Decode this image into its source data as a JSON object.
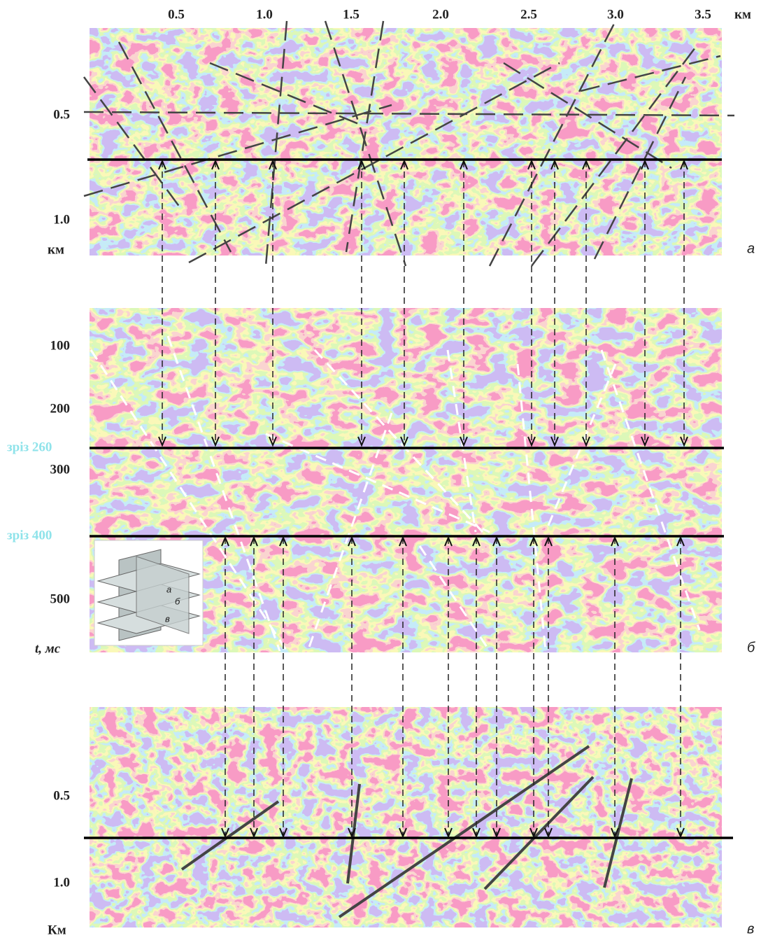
{
  "panel_a": {
    "x_labels": [
      "0.5",
      "1.0",
      "1.5",
      "2.0",
      "2.5",
      "3.0",
      "3.5"
    ],
    "x_unit": "км",
    "y_labels": [
      "0.5",
      "1.0"
    ],
    "y_unit": "км",
    "letter": "а"
  },
  "panel_b": {
    "y_labels": [
      "100",
      "200",
      "300",
      "500"
    ],
    "slice_labels": [
      "зріз 260",
      "зріз 400"
    ],
    "y_axis_label": "t, мс",
    "letter": "б",
    "inset_labels": [
      "а",
      "б",
      "в"
    ]
  },
  "panel_c": {
    "y_labels": [
      "0.5",
      "1.0"
    ],
    "y_unit": "Км",
    "letter": "в"
  }
}
